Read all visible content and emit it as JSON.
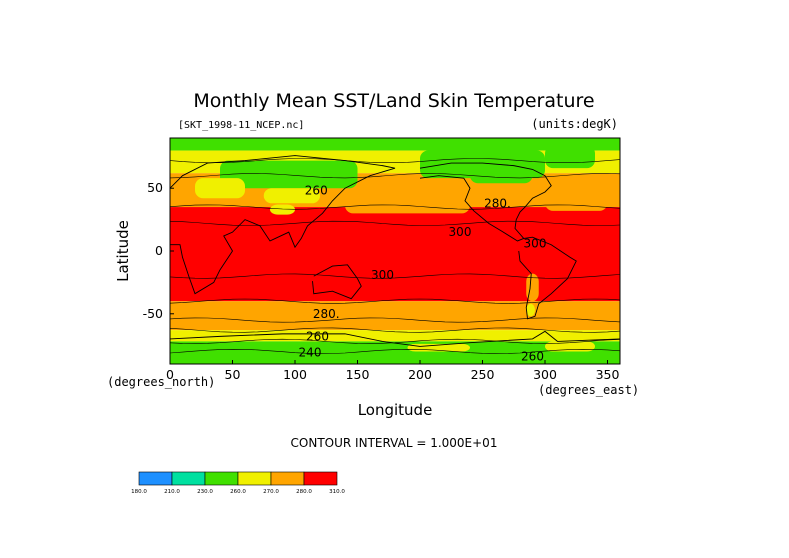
{
  "chart_data": {
    "type": "heatmap",
    "title": "Monthly Mean SST/Land Skin Temperature",
    "file_label": "[SKT_1998-11_NCEP.nc]",
    "units_label": "(units:degK)",
    "xlabel": "Longitude",
    "ylabel": "Latitude",
    "x_unit_label": "(degrees_east)",
    "y_unit_label": "(degrees_north)",
    "xlim": [
      0,
      360
    ],
    "ylim": [
      -90,
      90
    ],
    "x_ticks": [
      0,
      50,
      100,
      150,
      200,
      250,
      300,
      350
    ],
    "y_ticks": [
      50,
      0,
      -50
    ],
    "contour_interval_text": "CONTOUR INTERVAL = 1.000E+01",
    "levels": [
      "180.0",
      "210.0",
      "230.0",
      "260.0",
      "270.0",
      "280.0",
      "310.0"
    ],
    "colors": [
      "#1e90ff",
      "#00e0a0",
      "#40e000",
      "#f0f000",
      "#ffa500",
      "#ff0000"
    ],
    "contour_labels": [
      {
        "text": "260",
        "lon": 117,
        "lat": 48
      },
      {
        "text": "280.",
        "lon": 262,
        "lat": 38
      },
      {
        "text": "300",
        "lon": 232,
        "lat": 15
      },
      {
        "text": "300",
        "lon": 292,
        "lat": 6
      },
      {
        "text": "300",
        "lon": 170,
        "lat": -19
      },
      {
        "text": "280.",
        "lon": 125,
        "lat": -50
      },
      {
        "text": "260",
        "lon": 118,
        "lat": -68
      },
      {
        "text": "240",
        "lon": 112,
        "lat": -81
      },
      {
        "text": "260",
        "lon": 290,
        "lat": -84
      }
    ]
  }
}
